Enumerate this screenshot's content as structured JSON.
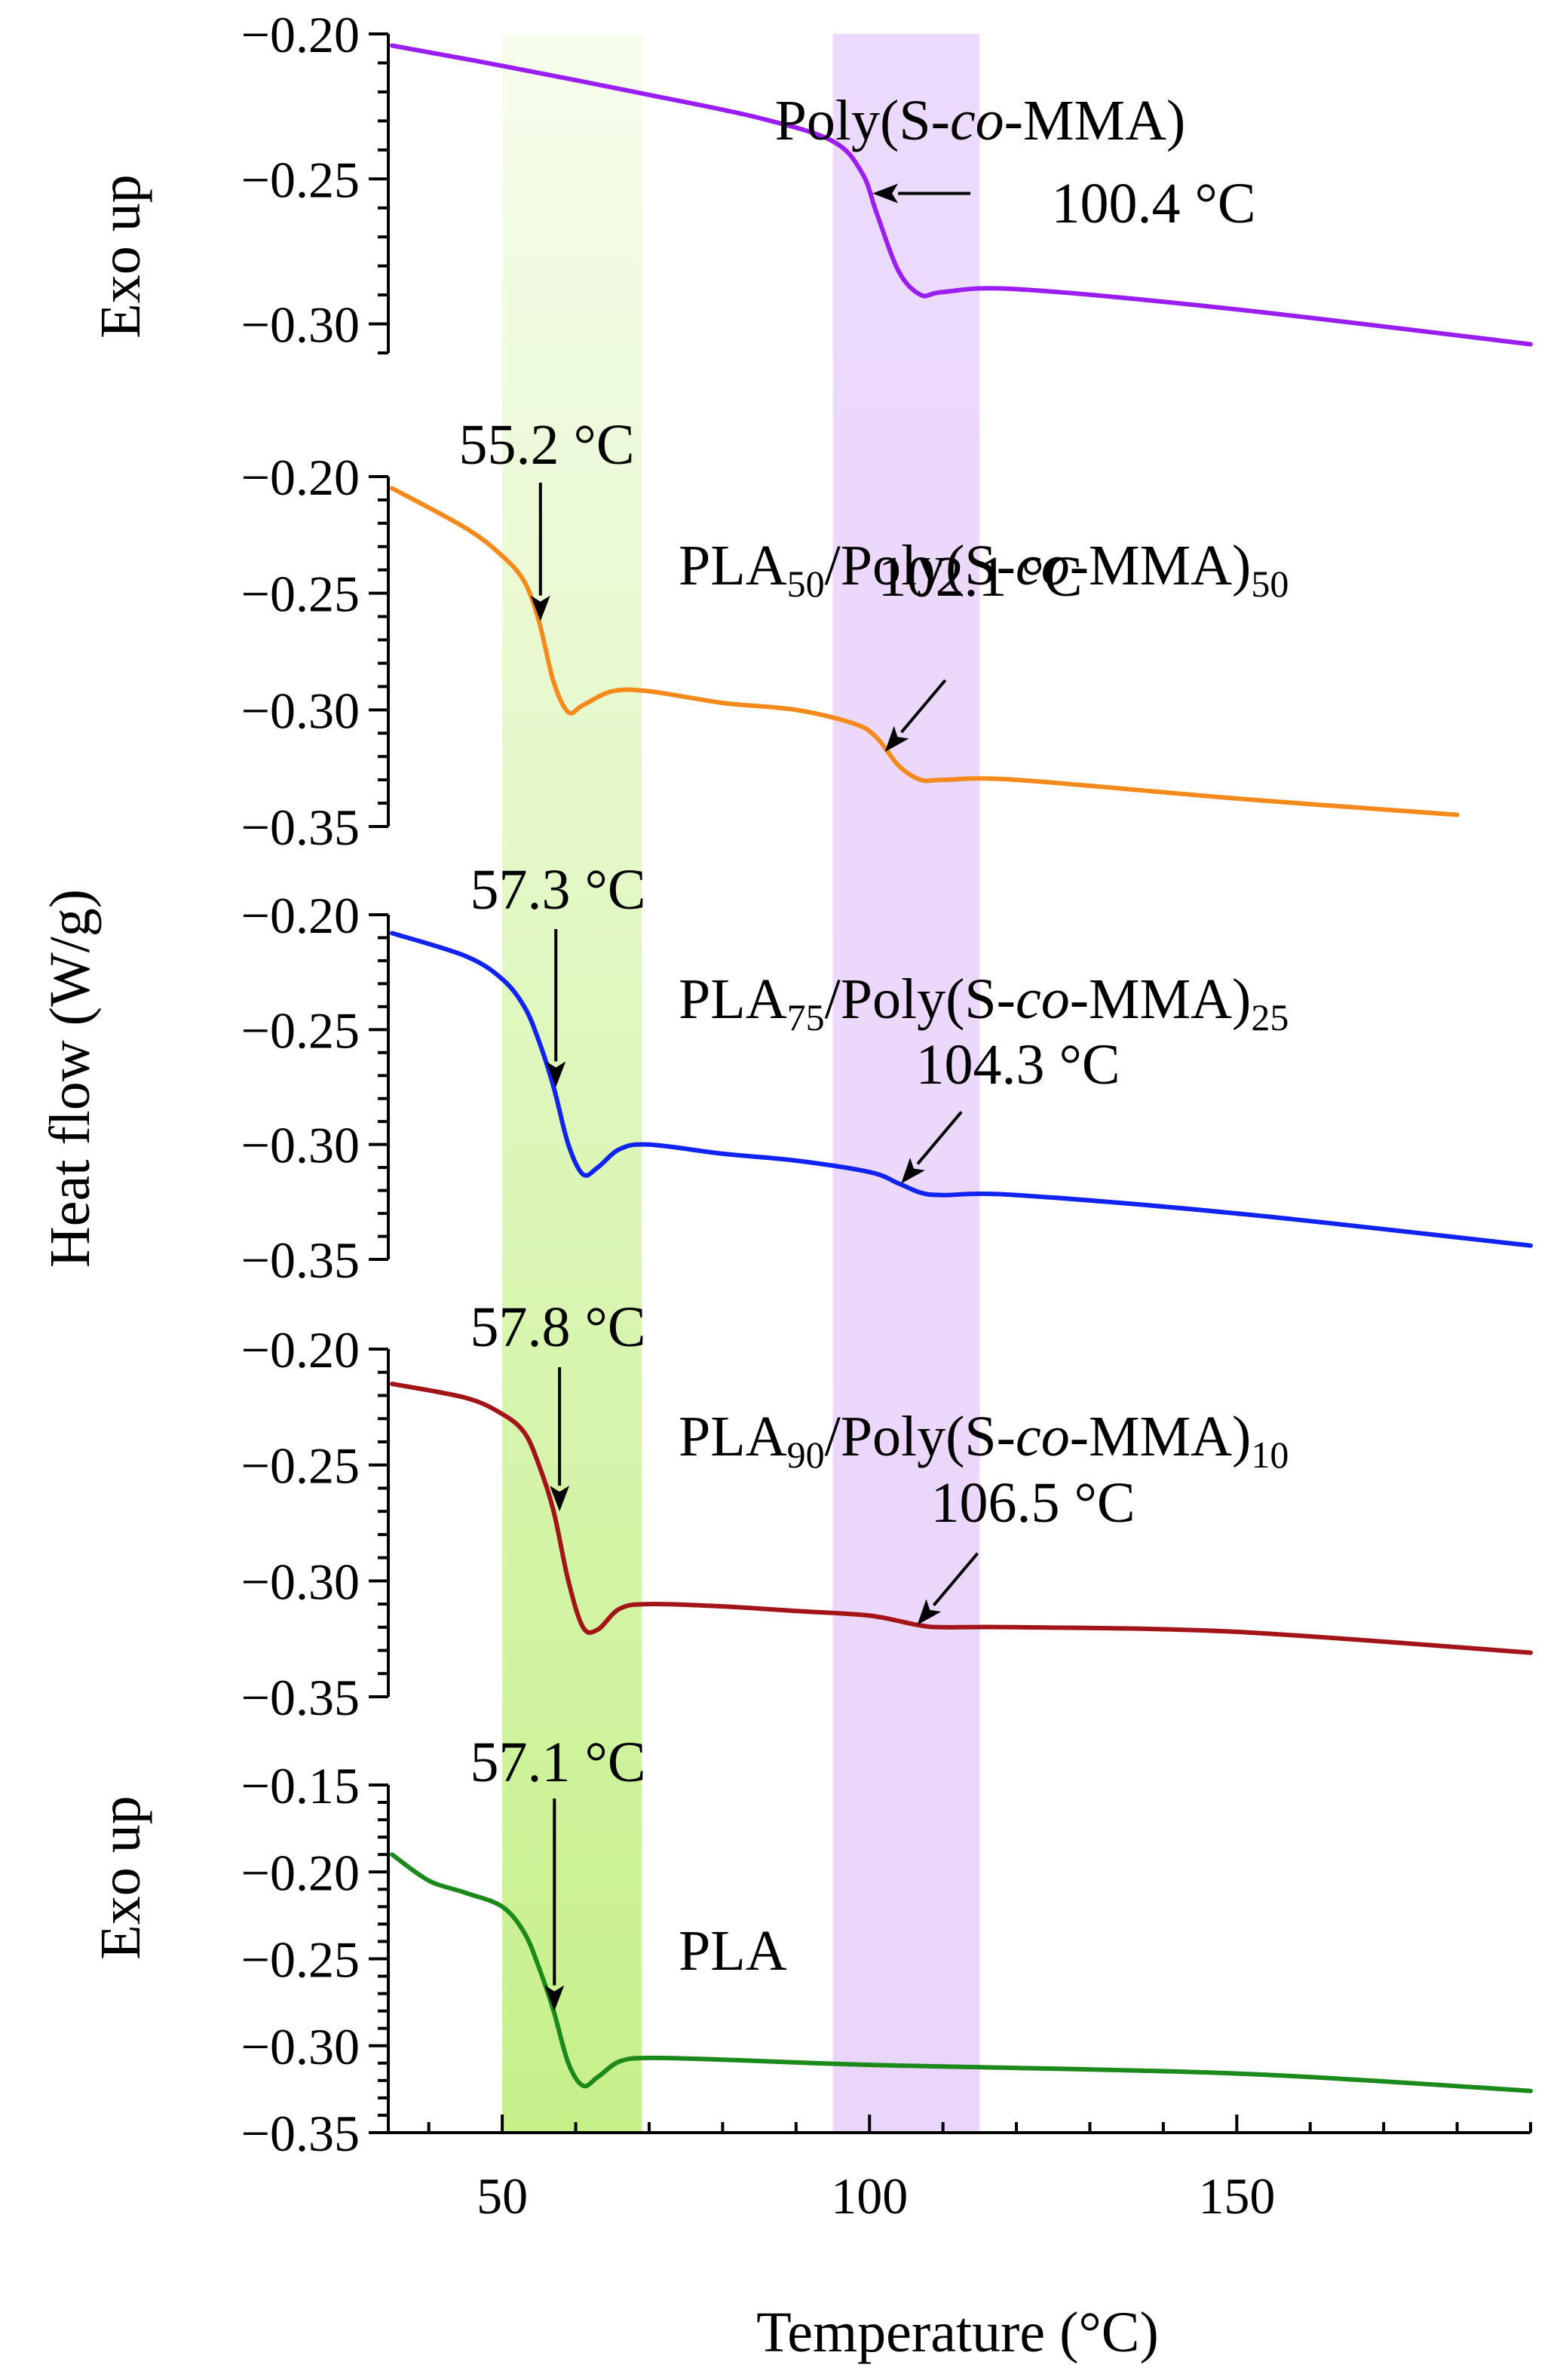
{
  "chart_data": {
    "type": "line",
    "xlabel": "Temperature (°C)",
    "ylabel": "Heat flow (W/g)",
    "exo_label": "Exo up",
    "xlim": [
      35,
      190
    ],
    "xticks": [
      50,
      100,
      150
    ],
    "xtick_labels": [
      "50",
      "100",
      "150"
    ],
    "bands": [
      {
        "name": "pla-tg-band",
        "x0": 50,
        "x1": 69,
        "color": "#c6f08a"
      },
      {
        "name": "copolymer-tg-band",
        "x0": 95,
        "x1": 115,
        "color": "#ead6fa"
      }
    ],
    "panels": [
      {
        "id": "poly-s-co-mma",
        "label_parts": [
          {
            "t": "Poly(S-"
          },
          {
            "t": "co",
            "i": true
          },
          {
            "t": "-MMA)"
          }
        ],
        "color": "#9b1ef0",
        "ylim": [
          -0.2,
          -0.31
        ],
        "yticks": [
          -0.2,
          -0.25,
          -0.3
        ],
        "ytick_labels": [
          "−0.20",
          "−0.25",
          "−0.30"
        ],
        "x": [
          35,
          50,
          70,
          85,
          95,
          99,
          101,
          104,
          107,
          110,
          120,
          150,
          190
        ],
        "y": [
          -0.204,
          -0.211,
          -0.221,
          -0.229,
          -0.237,
          -0.248,
          -0.262,
          -0.282,
          -0.29,
          -0.289,
          -0.288,
          -0.295,
          -0.307
        ],
        "transitions": [
          {
            "value": "100.4 °C",
            "x": 100.4,
            "y": -0.255
          }
        ]
      },
      {
        "id": "pla50",
        "label_parts": [
          {
            "t": "PLA"
          },
          {
            "t": "50",
            "s": true
          },
          {
            "t": "/Poly(S-"
          },
          {
            "t": "co",
            "i": true
          },
          {
            "t": "-MMA)"
          },
          {
            "t": "50",
            "s": true
          }
        ],
        "color": "#f58a1c",
        "ylim": [
          -0.2,
          -0.35
        ],
        "yticks": [
          -0.2,
          -0.25,
          -0.3,
          -0.35
        ],
        "ytick_labels": [
          "−0.20",
          "−0.25",
          "−0.30",
          "−0.35"
        ],
        "x": [
          35,
          45,
          50,
          53,
          55,
          57,
          59,
          61,
          65,
          70,
          80,
          90,
          98,
          101,
          104,
          107,
          110,
          120,
          150,
          180
        ],
        "y": [
          -0.205,
          -0.222,
          -0.234,
          -0.245,
          -0.262,
          -0.288,
          -0.301,
          -0.298,
          -0.292,
          -0.292,
          -0.297,
          -0.3,
          -0.306,
          -0.312,
          -0.324,
          -0.33,
          -0.33,
          -0.33,
          -0.338,
          -0.345
        ],
        "transitions": [
          {
            "value": "55.2 °C",
            "x": 55.2,
            "y": -0.262
          },
          {
            "value": "102.1 °C",
            "x": 102.1,
            "y": -0.318
          }
        ]
      },
      {
        "id": "pla75",
        "label_parts": [
          {
            "t": "PLA"
          },
          {
            "t": "75",
            "s": true
          },
          {
            "t": "/Poly(S-"
          },
          {
            "t": "co",
            "i": true
          },
          {
            "t": "-MMA)"
          },
          {
            "t": "25",
            "s": true
          }
        ],
        "color": "#1023f0",
        "ylim": [
          -0.2,
          -0.35
        ],
        "yticks": [
          -0.2,
          -0.25,
          -0.3,
          -0.35
        ],
        "ytick_labels": [
          "−0.20",
          "−0.25",
          "−0.30",
          "−0.35"
        ],
        "x": [
          35,
          45,
          50,
          53,
          55,
          57,
          59,
          61,
          63,
          66,
          70,
          80,
          90,
          100,
          104,
          107,
          110,
          120,
          150,
          190
        ],
        "y": [
          -0.208,
          -0.218,
          -0.228,
          -0.24,
          -0.255,
          -0.275,
          -0.3,
          -0.313,
          -0.31,
          -0.302,
          -0.3,
          -0.304,
          -0.307,
          -0.312,
          -0.317,
          -0.321,
          -0.322,
          -0.322,
          -0.33,
          -0.344
        ],
        "transitions": [
          {
            "value": "57.3 °C",
            "x": 57.3,
            "y": -0.275
          },
          {
            "value": "104.3 °C",
            "x": 104.3,
            "y": -0.317
          }
        ]
      },
      {
        "id": "pla90",
        "label_parts": [
          {
            "t": "PLA"
          },
          {
            "t": "90",
            "s": true
          },
          {
            "t": "/Poly(S-"
          },
          {
            "t": "co",
            "i": true
          },
          {
            "t": "-MMA)"
          },
          {
            "t": "10",
            "s": true
          }
        ],
        "color": "#a31418",
        "ylim": [
          -0.2,
          -0.35
        ],
        "yticks": [
          -0.2,
          -0.25,
          -0.3,
          -0.35
        ],
        "ytick_labels": [
          "−0.20",
          "−0.25",
          "−0.30",
          "−0.35"
        ],
        "x": [
          35,
          45,
          50,
          53,
          55,
          57,
          59,
          61,
          63,
          66,
          70,
          80,
          90,
          100,
          106.5,
          110,
          120,
          150,
          190
        ],
        "y": [
          -0.215,
          -0.221,
          -0.228,
          -0.236,
          -0.25,
          -0.27,
          -0.3,
          -0.32,
          -0.321,
          -0.312,
          -0.31,
          -0.311,
          -0.313,
          -0.315,
          -0.319,
          -0.32,
          -0.32,
          -0.322,
          -0.331
        ],
        "transitions": [
          {
            "value": "57.8 °C",
            "x": 57.8,
            "y": -0.27
          },
          {
            "value": "106.5 °C",
            "x": 106.5,
            "y": -0.319
          }
        ]
      },
      {
        "id": "pla",
        "label_parts": [
          {
            "t": "PLA"
          }
        ],
        "color": "#1b8a1b",
        "ylim": [
          -0.15,
          -0.35
        ],
        "yticks": [
          -0.15,
          -0.2,
          -0.25,
          -0.3,
          -0.35
        ],
        "ytick_labels": [
          "−0.15",
          "−0.20",
          "−0.25",
          "−0.30",
          "−0.35"
        ],
        "x": [
          35,
          40,
          45,
          50,
          53,
          55,
          57,
          59,
          61,
          63,
          66,
          70,
          80,
          100,
          150,
          190
        ],
        "y": [
          -0.19,
          -0.205,
          -0.212,
          -0.22,
          -0.235,
          -0.255,
          -0.28,
          -0.31,
          -0.323,
          -0.318,
          -0.309,
          -0.307,
          -0.308,
          -0.311,
          -0.316,
          -0.326
        ],
        "transitions": [
          {
            "value": "57.1 °C",
            "x": 57.1,
            "y": -0.28
          }
        ]
      }
    ]
  }
}
